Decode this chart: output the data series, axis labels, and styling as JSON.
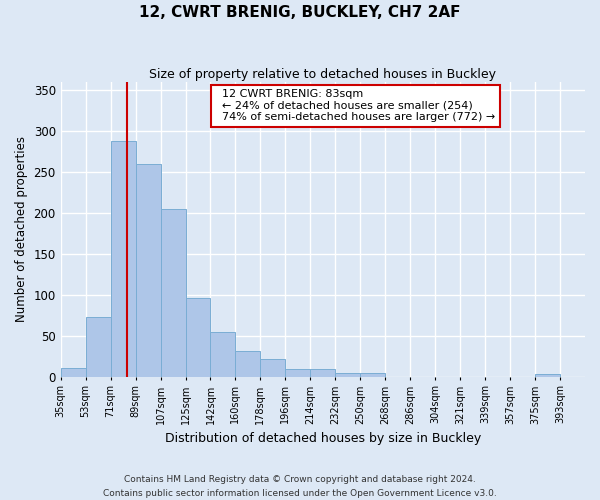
{
  "title": "12, CWRT BRENIG, BUCKLEY, CH7 2AF",
  "subtitle": "Size of property relative to detached houses in Buckley",
  "xlabel": "Distribution of detached houses by size in Buckley",
  "ylabel": "Number of detached properties",
  "bar_labels": [
    "35sqm",
    "53sqm",
    "71sqm",
    "89sqm",
    "107sqm",
    "125sqm",
    "142sqm",
    "160sqm",
    "178sqm",
    "196sqm",
    "214sqm",
    "232sqm",
    "250sqm",
    "268sqm",
    "286sqm",
    "304sqm",
    "321sqm",
    "339sqm",
    "357sqm",
    "375sqm",
    "393sqm"
  ],
  "bar_heights": [
    10,
    73,
    287,
    260,
    205,
    96,
    54,
    31,
    21,
    9,
    9,
    4,
    5,
    0,
    0,
    0,
    0,
    0,
    0,
    3,
    0
  ],
  "bar_color": "#aec6e8",
  "bar_edge_color": "#7aadd4",
  "vline_x": 83,
  "vline_color": "#cc0000",
  "annotation_title": "12 CWRT BRENIG: 83sqm",
  "annotation_line1": "← 24% of detached houses are smaller (254)",
  "annotation_line2": "74% of semi-detached houses are larger (772) →",
  "annotation_box_color": "#ffffff",
  "annotation_box_edge": "#cc0000",
  "ylim": [
    0,
    360
  ],
  "yticks": [
    0,
    50,
    100,
    150,
    200,
    250,
    300,
    350
  ],
  "footer_line1": "Contains HM Land Registry data © Crown copyright and database right 2024.",
  "footer_line2": "Contains public sector information licensed under the Open Government Licence v3.0.",
  "bg_color": "#dde8f5",
  "plot_bg_color": "#dde8f5",
  "grid_color": "#ffffff",
  "bin_width": 18
}
